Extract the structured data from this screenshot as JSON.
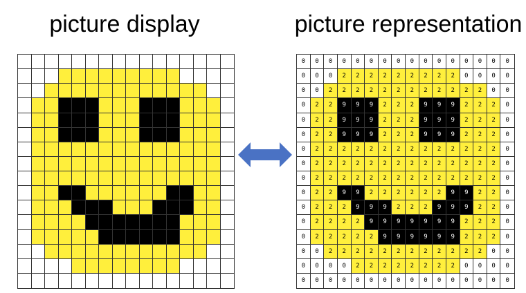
{
  "titles": {
    "display": "picture display",
    "representation": "picture representation"
  },
  "colors": {
    "0": "#ffffff",
    "2": "#ffef3c",
    "9": "#000000",
    "9_text": "#ffffff",
    "arrow": "#4a72c4"
  },
  "grid": [
    "0000000000000000",
    "0002222222220000",
    "0022222222222200",
    "0229992229992220",
    "0229992229992220",
    "0229992229992220",
    "0222222222222220",
    "0222222222222220",
    "0222222222222220",
    "0229922222299220",
    "0222999222999220",
    "0222299999992220",
    "0222229999992220",
    "0022222222222200",
    "0000222222220000",
    "0000000000000000"
  ]
}
